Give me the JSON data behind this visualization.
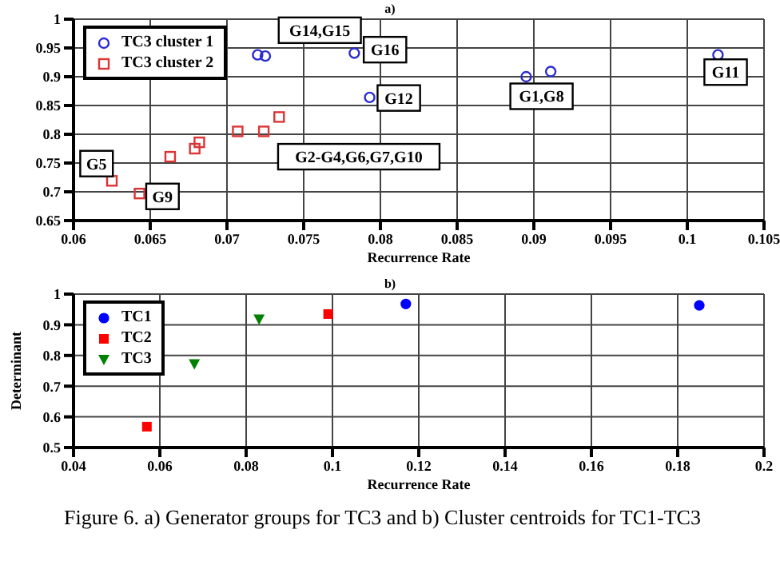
{
  "chart_data": [
    {
      "type": "scatter",
      "title": "a)",
      "xlabel": "Recurrence Rate",
      "xlim": [
        0.06,
        0.105
      ],
      "xticks": [
        0.06,
        0.065,
        0.07,
        0.075,
        0.08,
        0.085,
        0.09,
        0.095,
        0.1,
        0.105
      ],
      "ylim": [
        0.65,
        1
      ],
      "yticks": [
        0.65,
        0.7,
        0.75,
        0.8,
        0.85,
        0.9,
        0.95,
        1
      ],
      "grid": true,
      "legend": "top left",
      "series": [
        {
          "name": "TC3 cluster 1",
          "color": "#2b2bd0",
          "marker": "circle",
          "x": [
            0.072,
            0.0725,
            0.0783,
            0.0793,
            0.0895,
            0.0911,
            0.102
          ],
          "values": [
            0.938,
            0.936,
            0.941,
            0.864,
            0.9,
            0.909,
            0.938
          ]
        },
        {
          "name": "TC3 cluster 2",
          "color": "#dd3333",
          "marker": "square",
          "x": [
            0.0625,
            0.0643,
            0.0663,
            0.0679,
            0.0682,
            0.0707,
            0.0724,
            0.0734
          ],
          "values": [
            0.719,
            0.697,
            0.761,
            0.775,
            0.786,
            0.805,
            0.805,
            0.83
          ]
        }
      ],
      "annotations": [
        "G14,G15",
        {
          "text": "G16",
          "x": 0.0803,
          "y": 0.947
        },
        {
          "text": "G12",
          "x": 0.0812,
          "y": 0.863
        },
        {
          "text": "G1,G8",
          "x": 0.0905,
          "y": 0.866
        },
        {
          "text": "G11",
          "x": 0.1025,
          "y": 0.908
        },
        "G2-G4,G6,G7,G10",
        {
          "text": "G5",
          "x": 0.0615,
          "y": 0.749
        },
        {
          "text": "G9",
          "x": 0.0658,
          "y": 0.692
        }
      ]
    },
    {
      "type": "scatter",
      "title": "b)",
      "xlabel": "Recurrence Rate",
      "ylabel": "Determinant",
      "xlim": [
        0.04,
        0.2
      ],
      "xticks": [
        0.04,
        0.06,
        0.08,
        0.1,
        0.12,
        0.14,
        0.16,
        0.18,
        0.2
      ],
      "ylim": [
        0.5,
        1
      ],
      "yticks": [
        0.5,
        0.6,
        0.7,
        0.8,
        0.9,
        1
      ],
      "grid": true,
      "legend": "top left",
      "series": [
        {
          "name": "TC1",
          "color": "#0000ff",
          "marker": "circle",
          "x": [
            0.117,
            0.185
          ],
          "values": [
            0.968,
            0.963
          ]
        },
        {
          "name": "TC2",
          "color": "#ff0000",
          "marker": "square",
          "x": [
            0.057,
            0.099
          ],
          "values": [
            0.568,
            0.935
          ]
        },
        {
          "name": "TC3",
          "color": "#008000",
          "marker": "triangle",
          "x": [
            0.068,
            0.083
          ],
          "values": [
            0.772,
            0.918
          ]
        }
      ],
      "annotations": [
        "Figure 6.    a) Generator groups for TC3 and b) Cluster centroids for TC1-TC3"
      ]
    }
  ]
}
